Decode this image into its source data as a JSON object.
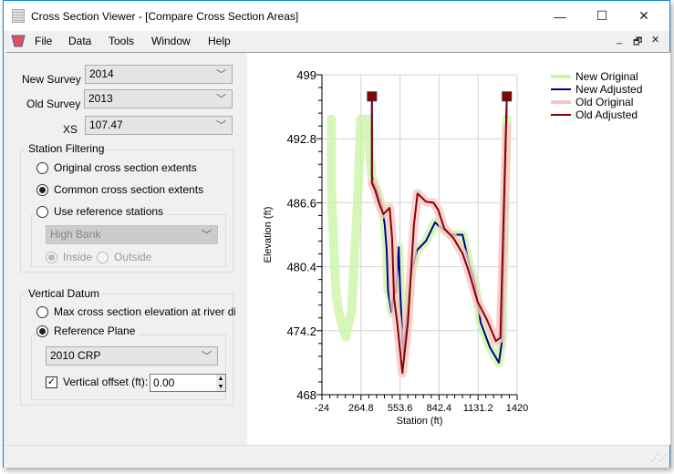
{
  "window": {
    "title": "Cross Section Viewer - [Compare Cross Section Areas]",
    "minimize": "—",
    "maximize": "☐",
    "close": "✕"
  },
  "menu": {
    "items": [
      "File",
      "Data",
      "Tools",
      "Window",
      "Help"
    ],
    "mdi_min": "_",
    "mdi_restore": "🗗",
    "mdi_close": "✕"
  },
  "form": {
    "new_survey_label": "New Survey",
    "new_survey_value": "2014",
    "old_survey_label": "Old Survey",
    "old_survey_value": "2013",
    "xs_label": "XS",
    "xs_value": "107.47",
    "station_filtering": {
      "title": "Station Filtering",
      "options": [
        "Original cross section extents",
        "Common cross section extents",
        "Use reference stations"
      ],
      "selected": 1,
      "reference_combo": "High Bank",
      "inside": "Inside",
      "outside": "Outside"
    },
    "vertical_datum": {
      "title": "Vertical Datum",
      "options": [
        "Max cross section elevation at river distan",
        "Reference Plane"
      ],
      "selected": 1,
      "plane_combo": "2010 CRP",
      "offset_label": "Vertical offset (ft):",
      "offset_checked": true,
      "offset_value": "0.00"
    }
  },
  "chart_data": {
    "type": "line",
    "xlabel": "Station (ft)",
    "ylabel": "Elevation (ft)",
    "xlim": [
      -24,
      1420
    ],
    "ylim": [
      468,
      499
    ],
    "xticks": [
      "-24",
      "264.8",
      "553.6",
      "842.4",
      "1131.2",
      "1420"
    ],
    "yticks": [
      "499",
      "492.8",
      "486.6",
      "480.4",
      "474.2",
      "468"
    ],
    "grid": true,
    "legend": "top-right",
    "series": [
      {
        "name": "New Original",
        "color": "#ccf5a8",
        "width": "wide",
        "points": [
          [
            46,
            494.7
          ],
          [
            46,
            488
          ],
          [
            55,
            485
          ],
          [
            65,
            482
          ],
          [
            80,
            478
          ],
          [
            100,
            476
          ],
          [
            130,
            474.5
          ],
          [
            151,
            473.6
          ],
          [
            175,
            475
          ],
          [
            196,
            476.2
          ],
          [
            214,
            480.6
          ],
          [
            236,
            485.6
          ],
          [
            250,
            490
          ],
          [
            263,
            494.7
          ],
          [
            320,
            494.7
          ],
          [
            330,
            491
          ],
          [
            346,
            489.2
          ],
          [
            390,
            487.5
          ],
          [
            420,
            486.2
          ],
          [
            440,
            484.5
          ],
          [
            455,
            482
          ],
          [
            465,
            478
          ],
          [
            475,
            479
          ],
          [
            490,
            476
          ],
          [
            510,
            478
          ],
          [
            522,
            477.9
          ],
          [
            535,
            480
          ],
          [
            544,
            482.3
          ],
          [
            555,
            478
          ],
          [
            578,
            471.9
          ],
          [
            600,
            475
          ],
          [
            640,
            480
          ],
          [
            679,
            482
          ],
          [
            746,
            482.9
          ],
          [
            813,
            484.7
          ],
          [
            836,
            484.4
          ],
          [
            926,
            483.5
          ],
          [
            1016,
            483.5
          ],
          [
            1061,
            480.9
          ],
          [
            1106,
            478.8
          ],
          [
            1150,
            475
          ],
          [
            1218,
            472.6
          ],
          [
            1285,
            471.1
          ],
          [
            1308,
            473.2
          ],
          [
            1330,
            486
          ],
          [
            1344,
            494.7
          ]
        ]
      },
      {
        "name": "New Adjusted",
        "color": "#00008b",
        "width": "thin",
        "points": [
          [
            346,
            496.9
          ],
          [
            346,
            489.2
          ],
          [
            360,
            488.5
          ],
          [
            390,
            487.5
          ],
          [
            420,
            486.2
          ],
          [
            440,
            484.5
          ],
          [
            455,
            482
          ],
          [
            465,
            478
          ],
          [
            490,
            476
          ],
          [
            510,
            478
          ],
          [
            522,
            477.9
          ],
          [
            535,
            480
          ],
          [
            544,
            482.3
          ],
          [
            555,
            478
          ],
          [
            578,
            471.9
          ],
          [
            600,
            475
          ],
          [
            640,
            480
          ],
          [
            679,
            482
          ],
          [
            746,
            482.9
          ],
          [
            813,
            484.7
          ],
          [
            836,
            484.4
          ],
          [
            926,
            483.5
          ],
          [
            1016,
            483.5
          ],
          [
            1061,
            480.9
          ],
          [
            1106,
            478.8
          ],
          [
            1150,
            475
          ],
          [
            1218,
            472.6
          ],
          [
            1285,
            471.1
          ],
          [
            1308,
            473.2
          ],
          [
            1344,
            496.9
          ]
        ]
      },
      {
        "name": "Old Original",
        "color": "#f8c8c8",
        "width": "wide",
        "points": [
          [
            346,
            488.5
          ],
          [
            370,
            487.8
          ],
          [
            400,
            486.5
          ],
          [
            430,
            485.5
          ],
          [
            477,
            486.1
          ],
          [
            495,
            483.2
          ],
          [
            510,
            477.3
          ],
          [
            533,
            475
          ],
          [
            571,
            470.1
          ],
          [
            612,
            475
          ],
          [
            656,
            484.4
          ],
          [
            683,
            487.5
          ],
          [
            746,
            486.7
          ],
          [
            802,
            486.6
          ],
          [
            836,
            485.9
          ],
          [
            881,
            484.1
          ],
          [
            948,
            483.2
          ],
          [
            1016,
            481.7
          ],
          [
            1061,
            480
          ],
          [
            1128,
            477
          ],
          [
            1195,
            475.3
          ],
          [
            1263,
            473.2
          ],
          [
            1296,
            473.5
          ],
          [
            1344,
            494
          ]
        ]
      },
      {
        "name": "Old Adjusted",
        "color": "#8b0000",
        "width": "thin",
        "points": [
          [
            346,
            496.9
          ],
          [
            346,
            488.5
          ],
          [
            370,
            487.8
          ],
          [
            400,
            486.5
          ],
          [
            430,
            485.5
          ],
          [
            477,
            486.1
          ],
          [
            495,
            483.2
          ],
          [
            510,
            477.3
          ],
          [
            533,
            475
          ],
          [
            571,
            470.1
          ],
          [
            612,
            475
          ],
          [
            656,
            484.4
          ],
          [
            683,
            487.5
          ],
          [
            746,
            486.7
          ],
          [
            802,
            486.6
          ],
          [
            836,
            485.9
          ],
          [
            881,
            484.1
          ],
          [
            948,
            483.2
          ],
          [
            1016,
            481.7
          ],
          [
            1061,
            480
          ],
          [
            1128,
            477
          ],
          [
            1195,
            475.3
          ],
          [
            1263,
            473.2
          ],
          [
            1296,
            473.5
          ],
          [
            1344,
            496.9
          ]
        ]
      }
    ],
    "markers": [
      [
        346,
        496.9
      ],
      [
        1344,
        496.9
      ]
    ]
  }
}
